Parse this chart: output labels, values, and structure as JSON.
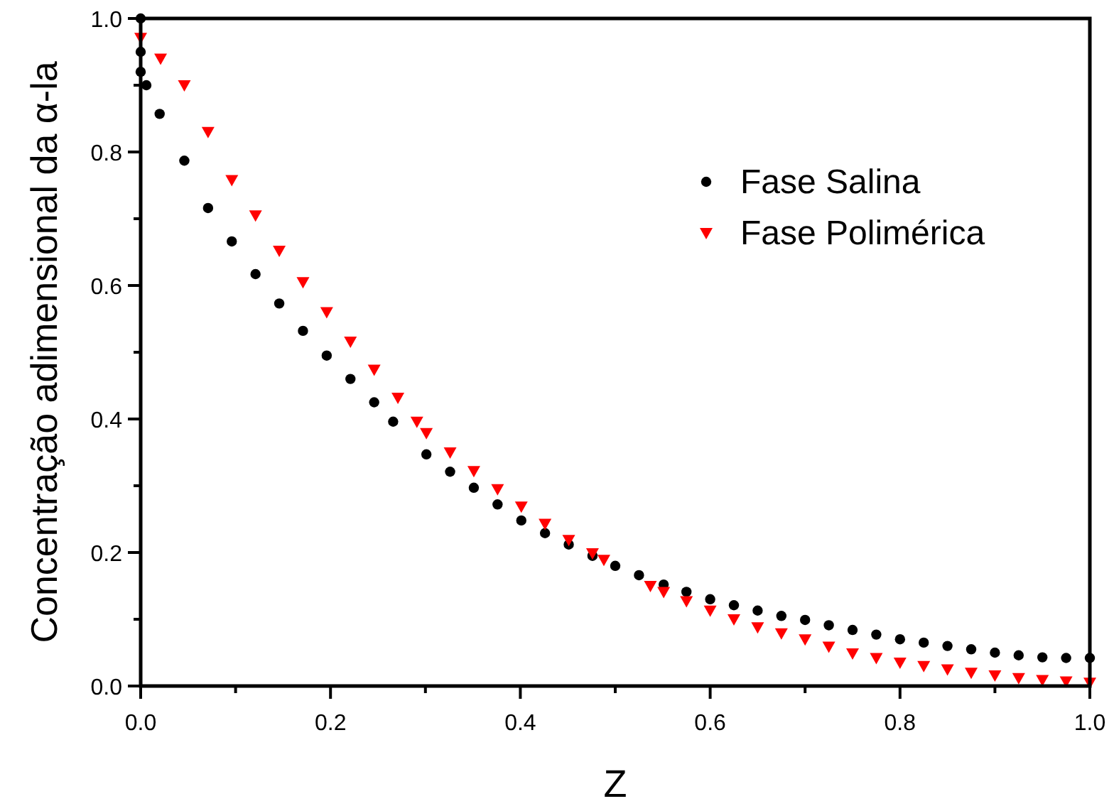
{
  "chart_data": {
    "type": "scatter",
    "xlabel": "Z",
    "ylabel": "Concentração adimensional da α-la",
    "xlim": [
      0,
      1
    ],
    "ylim": [
      0,
      1
    ],
    "xticks": [
      {
        "value": 0,
        "label": "0.0"
      },
      {
        "value": 0.1,
        "label": null
      },
      {
        "value": 0.2,
        "label": "0.2"
      },
      {
        "value": 0.3,
        "label": null
      },
      {
        "value": 0.4,
        "label": "0.4"
      },
      {
        "value": 0.5,
        "label": null
      },
      {
        "value": 0.6,
        "label": "0.6"
      },
      {
        "value": 0.7,
        "label": null
      },
      {
        "value": 0.8,
        "label": "0.8"
      },
      {
        "value": 0.9,
        "label": null
      },
      {
        "value": 1,
        "label": "1.0"
      }
    ],
    "yticks": [
      {
        "value": 0,
        "label": "0.0"
      },
      {
        "value": 0.1,
        "label": null
      },
      0.2,
      {
        "value": 0.3,
        "label": null
      },
      0.4,
      {
        "value": 0.5,
        "label": null
      },
      0.6,
      {
        "value": 0.7,
        "label": null
      },
      0.8,
      {
        "value": 0.9,
        "label": null
      },
      {
        "value": 1,
        "label": "1.0"
      }
    ],
    "grid": false,
    "legend": "top right",
    "series": [
      {
        "name": "Fase Salina",
        "color": "#000000",
        "marker": "circle",
        "x": [
          0,
          0,
          0,
          0.006,
          0.02,
          0.046,
          0.071,
          0.096,
          0.121,
          0.146,
          0.171,
          0.196,
          0.221,
          0.246,
          0.266,
          0.301,
          0.326,
          0.351,
          0.376,
          0.401,
          0.426,
          0.451,
          0.476,
          0.5,
          0.525,
          0.551,
          0.575,
          0.6,
          0.625,
          0.65,
          0.675,
          0.7,
          0.725,
          0.75,
          0.775,
          0.8,
          0.825,
          0.85,
          0.875,
          0.9,
          0.925,
          0.95,
          0.975,
          1.0
        ],
        "values": [
          1.0,
          0.95,
          0.92,
          0.9,
          0.857,
          0.787,
          0.716,
          0.666,
          0.617,
          0.573,
          0.532,
          0.495,
          0.46,
          0.425,
          0.396,
          0.347,
          0.321,
          0.297,
          0.272,
          0.248,
          0.229,
          0.212,
          0.195,
          0.18,
          0.166,
          0.152,
          0.141,
          0.13,
          0.121,
          0.113,
          0.105,
          0.099,
          0.091,
          0.084,
          0.077,
          0.07,
          0.065,
          0.06,
          0.055,
          0.05,
          0.046,
          0.043,
          0.042,
          0.042
        ]
      },
      {
        "name": "Fase Polimérica",
        "color": "#ff0000",
        "marker": "triangle",
        "x": [
          0,
          0.021,
          0.046,
          0.071,
          0.096,
          0.121,
          0.146,
          0.171,
          0.196,
          0.221,
          0.246,
          0.271,
          0.291,
          0.301,
          0.326,
          0.351,
          0.376,
          0.401,
          0.426,
          0.451,
          0.476,
          0.488,
          0.537,
          0.551,
          0.575,
          0.6,
          0.625,
          0.65,
          0.675,
          0.7,
          0.725,
          0.75,
          0.775,
          0.8,
          0.825,
          0.85,
          0.875,
          0.9,
          0.925,
          0.95,
          0.975,
          1.0
        ],
        "values": [
          0.971,
          0.94,
          0.9,
          0.83,
          0.758,
          0.705,
          0.652,
          0.605,
          0.56,
          0.516,
          0.474,
          0.432,
          0.396,
          0.379,
          0.35,
          0.322,
          0.295,
          0.269,
          0.243,
          0.219,
          0.199,
          0.189,
          0.15,
          0.141,
          0.127,
          0.113,
          0.1,
          0.088,
          0.079,
          0.07,
          0.059,
          0.049,
          0.042,
          0.035,
          0.03,
          0.025,
          0.02,
          0.016,
          0.012,
          0.009,
          0.007,
          0.005
        ]
      }
    ]
  }
}
